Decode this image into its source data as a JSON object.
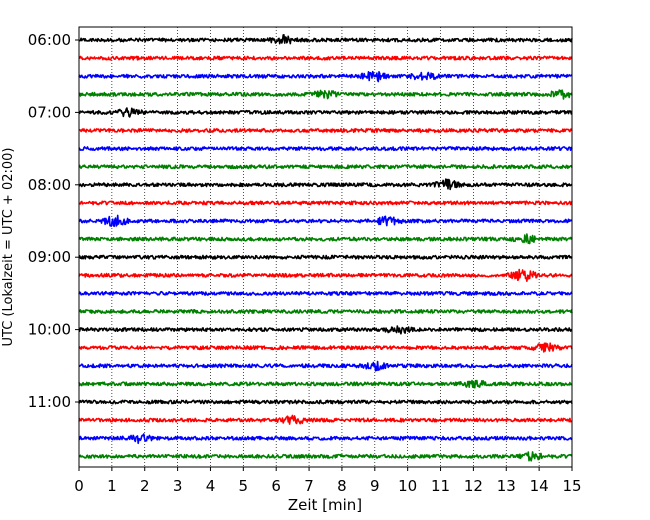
{
  "chart_data": {
    "type": "line",
    "title": "",
    "xlabel": "Zeit  [min]",
    "ylabel": "UTC (Lokalzeit = UTC + 02:00)",
    "xlim": [
      0,
      15
    ],
    "x_ticks": [
      "0",
      "1",
      "2",
      "3",
      "4",
      "5",
      "6",
      "7",
      "8",
      "9",
      "10",
      "11",
      "12",
      "13",
      "14",
      "15"
    ],
    "y_tick_labels": [
      "06:00",
      "07:00",
      "08:00",
      "09:00",
      "10:00",
      "11:00"
    ],
    "grid": "vertical dotted",
    "trace_interval_minutes": 15,
    "start_time": "06:00",
    "trace_count": 24,
    "trace_colors": [
      "#000000",
      "#ff0000",
      "#0000ff",
      "#008000"
    ],
    "events": [
      {
        "trace": 0,
        "minute": 6.2,
        "amp": 1.3
      },
      {
        "trace": 2,
        "minute": 9.0,
        "amp": 1.8
      },
      {
        "trace": 2,
        "minute": 10.5,
        "amp": 1.2
      },
      {
        "trace": 3,
        "minute": 7.5,
        "amp": 1.1
      },
      {
        "trace": 3,
        "minute": 14.7,
        "amp": 1.2
      },
      {
        "trace": 4,
        "minute": 1.5,
        "amp": 1.1
      },
      {
        "trace": 8,
        "minute": 11.2,
        "amp": 1.5
      },
      {
        "trace": 10,
        "minute": 1.1,
        "amp": 1.6
      },
      {
        "trace": 10,
        "minute": 9.4,
        "amp": 1.3
      },
      {
        "trace": 11,
        "minute": 13.6,
        "amp": 1.2
      },
      {
        "trace": 13,
        "minute": 13.5,
        "amp": 2.0
      },
      {
        "trace": 16,
        "minute": 9.7,
        "amp": 1.2
      },
      {
        "trace": 17,
        "minute": 14.2,
        "amp": 1.3
      },
      {
        "trace": 18,
        "minute": 9.0,
        "amp": 1.2
      },
      {
        "trace": 19,
        "minute": 12.0,
        "amp": 1.1
      },
      {
        "trace": 21,
        "minute": 6.5,
        "amp": 1.2
      },
      {
        "trace": 22,
        "minute": 1.8,
        "amp": 1.3
      },
      {
        "trace": 23,
        "minute": 13.8,
        "amp": 1.2
      }
    ]
  }
}
